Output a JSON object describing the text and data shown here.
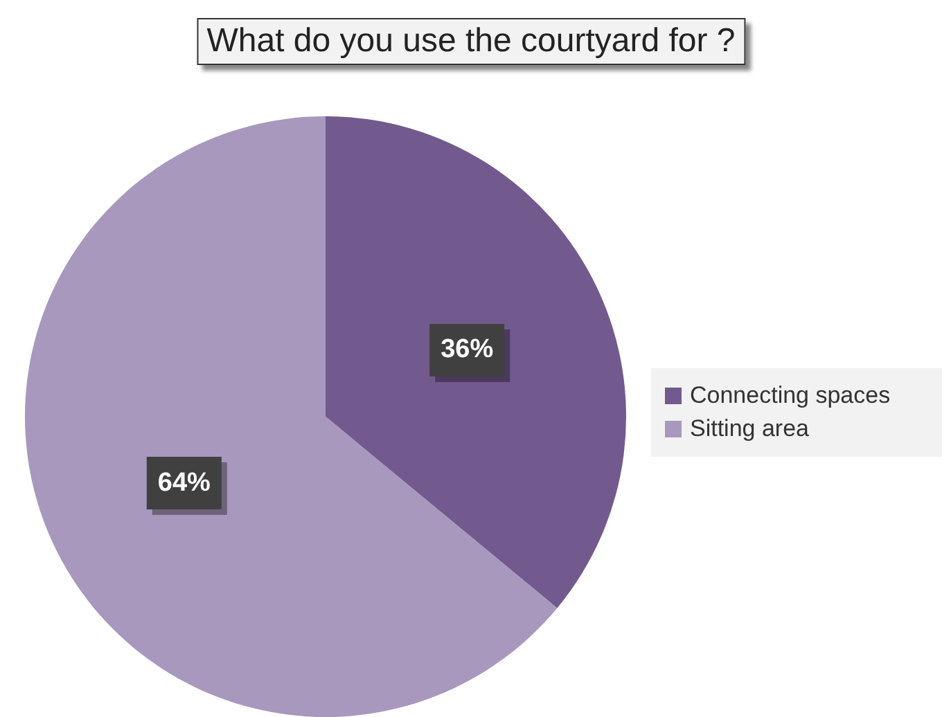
{
  "chart_data": {
    "type": "pie",
    "title": "What do you use the courtyard for ?",
    "categories": [
      "Connecting spaces",
      "Sitting area"
    ],
    "values": [
      36,
      64
    ],
    "value_labels": [
      "36%",
      "64%"
    ],
    "colors": [
      "#725a8f",
      "#a898bd"
    ],
    "legend": "right"
  }
}
